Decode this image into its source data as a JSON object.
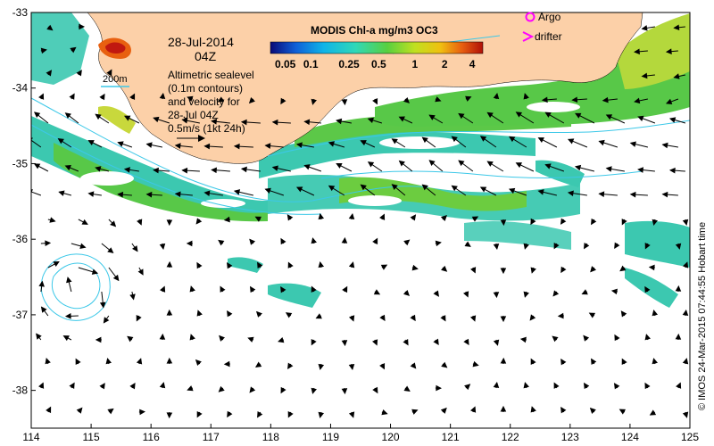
{
  "map": {
    "date_label": "28-Jul-2014",
    "time_label": "04Z",
    "info_lines": [
      "Altimetric sealevel",
      "(0.1m contours)",
      "and velocity for",
      "28-Jul 04Z",
      "0.5m/s (1kt 24h)"
    ],
    "scale_label": "200m",
    "side_credit": "© IMOS 24-Mar-2015 07:44:55 Hobart time",
    "lon_ticks": [
      "114",
      "115",
      "116",
      "117",
      "118",
      "119",
      "120",
      "121",
      "122",
      "123",
      "124",
      "125"
    ],
    "lat_ticks": [
      "-33",
      "-34",
      "-35",
      "-36",
      "-37",
      "-38"
    ],
    "lon_range": [
      114,
      125
    ],
    "lat_range": [
      -38.5,
      -33
    ]
  },
  "colorbar": {
    "title": "MODIS Chl-a mg/m3 OC3",
    "ticks": [
      "0.05",
      "0.1",
      "0.25",
      "0.5",
      "1",
      "2",
      "4"
    ],
    "scale": "log"
  },
  "legend": {
    "argo": "Argo",
    "drifter": "drifter"
  },
  "colors": {
    "land": "#fcd0a8",
    "ocean": "#ffffff",
    "chl_low": "#3bc8b4",
    "chl_mid": "#5cc848",
    "chl_high": "#b4d83c",
    "contour": "#3cc8e8",
    "argo": "#ff00ff",
    "drifter": "#ff00ff"
  }
}
